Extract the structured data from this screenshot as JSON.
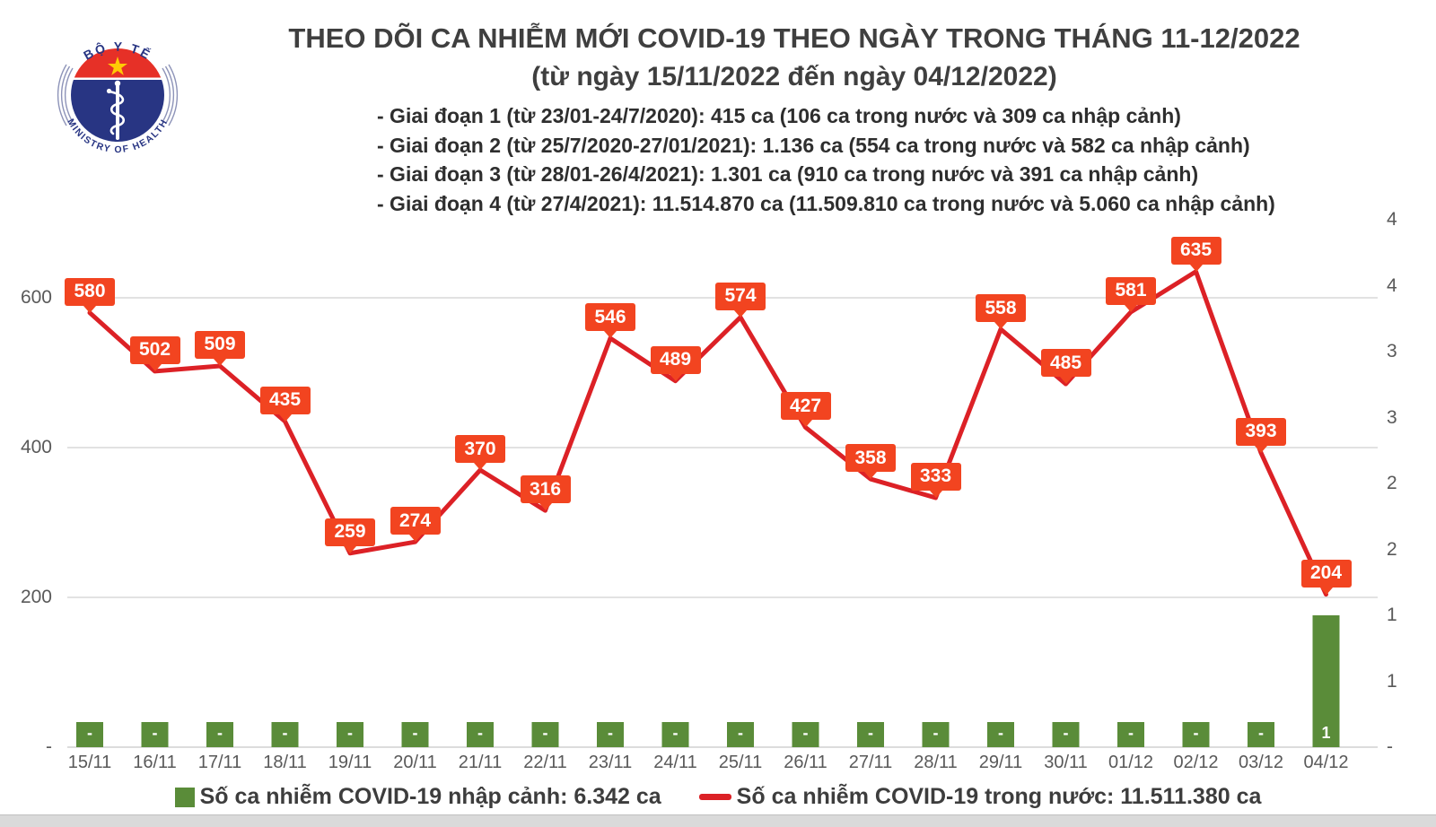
{
  "logo": {
    "arc_text_top": "BỘ Y TẾ",
    "arc_text_bottom": "MINISTRY OF HEALTH"
  },
  "header": {
    "title": "THEO DÕI CA NHIỄM MỚI COVID-19 THEO NGÀY TRONG THÁNG 11-12/2022",
    "subtitle": "(từ ngày 15/11/2022 đến ngày 04/12/2022)",
    "phases": [
      "- Giai đoạn 1 (từ 23/01-24/7/2020): 415 ca (106 ca trong nước và 309 ca nhập cảnh)",
      "- Giai đoạn 2 (từ 25/7/2020-27/01/2021): 1.136 ca (554 ca trong nước và 582 ca nhập cảnh)",
      "- Giai đoạn 3 (từ 28/01-26/4/2021): 1.301 ca (910 ca trong nước và 391 ca nhập cảnh)",
      "- Giai đoạn 4 (từ 27/4/2021): 11.514.870 ca (11.509.810 ca trong nước và 5.060 ca nhập cảnh)"
    ]
  },
  "chart_data": {
    "type": "line",
    "title": "THEO DÕI CA NHIỄM MỚI COVID-19 THEO NGÀY TRONG THÁNG 11-12/2022",
    "categories": [
      "15/11",
      "16/11",
      "17/11",
      "18/11",
      "19/11",
      "20/11",
      "21/11",
      "22/11",
      "23/11",
      "24/11",
      "25/11",
      "26/11",
      "27/11",
      "28/11",
      "29/11",
      "30/11",
      "01/12",
      "02/12",
      "03/12",
      "04/12"
    ],
    "series": [
      {
        "name": "Số ca nhiễm COVID-19 trong nước",
        "chart": "line",
        "axis": "left",
        "color": "#dc2126",
        "label_box_color": "#f24420",
        "values": [
          580,
          502,
          509,
          435,
          259,
          274,
          370,
          316,
          546,
          489,
          574,
          427,
          358,
          333,
          558,
          485,
          581,
          635,
          393,
          204
        ]
      },
      {
        "name": "Số ca nhiễm COVID-19 nhập cảnh",
        "chart": "bar",
        "axis": "right",
        "color": "#5a8c39",
        "values": [
          0,
          0,
          0,
          0,
          0,
          0,
          0,
          0,
          0,
          0,
          0,
          0,
          0,
          0,
          0,
          0,
          0,
          0,
          0,
          1
        ],
        "value_labels": [
          "-",
          "-",
          "-",
          "-",
          "-",
          "-",
          "-",
          "-",
          "-",
          "-",
          "-",
          "-",
          "-",
          "-",
          "-",
          "-",
          "-",
          "-",
          "-",
          "1"
        ]
      }
    ],
    "left_axis": {
      "tick_labels": [
        "600",
        "400",
        "200",
        "-"
      ],
      "tick_values": [
        600,
        400,
        200,
        0
      ],
      "max": 650
    },
    "right_axis": {
      "tick_labels": [
        "4",
        "4",
        "3",
        "3",
        "2",
        "2",
        "1",
        "1",
        "-"
      ],
      "tick_values": [
        4,
        3.5,
        3,
        2.5,
        2,
        1.5,
        1,
        0.5,
        0
      ],
      "max": 4
    },
    "grid": true,
    "legend": {
      "position": "bottom",
      "items": [
        {
          "label": "Số ca nhiễm COVID-19 nhập cảnh: 6.342 ca",
          "swatch": "square",
          "color": "#5a8c39"
        },
        {
          "label": "Số ca nhiễm COVID-19 trong nước: 11.511.380 ca",
          "swatch": "line",
          "color": "#dc2126"
        }
      ]
    }
  },
  "colors": {
    "grid": "#d9d9d9",
    "axis_line": "#d0d0d0",
    "axis_text": "#595959",
    "logo_navy": "#283583",
    "logo_red": "#e63027",
    "logo_star": "#ffcb05",
    "logo_arc": "#8d93b8"
  }
}
